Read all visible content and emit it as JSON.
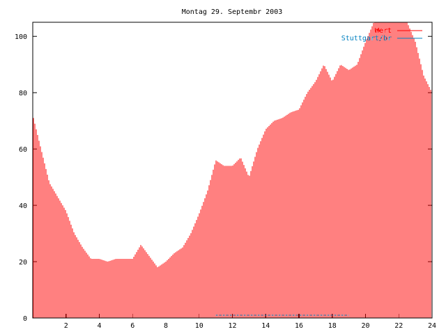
{
  "chart_data": {
    "type": "bar",
    "title": "Montag 29. Septembr 2003",
    "xlabel": "",
    "ylabel": "",
    "xlim": [
      0,
      24
    ],
    "ylim": [
      0,
      105
    ],
    "x_ticks": [
      2,
      4,
      6,
      8,
      10,
      12,
      14,
      16,
      18,
      20,
      22,
      24
    ],
    "y_ticks": [
      0,
      20,
      40,
      60,
      80,
      100
    ],
    "grid": false,
    "legend_position": "top-right",
    "series": [
      {
        "name": "Wert",
        "color": "#ff0000",
        "style": "impulses",
        "points": [
          [
            0.0,
            72
          ],
          [
            0.5,
            60
          ],
          [
            1.0,
            48
          ],
          [
            1.5,
            43
          ],
          [
            2.0,
            38
          ],
          [
            2.5,
            30
          ],
          [
            3.0,
            25
          ],
          [
            3.5,
            21
          ],
          [
            4.0,
            21
          ],
          [
            4.5,
            20
          ],
          [
            5.0,
            21
          ],
          [
            5.5,
            21
          ],
          [
            6.0,
            21
          ],
          [
            6.5,
            26
          ],
          [
            7.0,
            22
          ],
          [
            7.5,
            18
          ],
          [
            8.0,
            20
          ],
          [
            8.5,
            23
          ],
          [
            9.0,
            25
          ],
          [
            9.5,
            30
          ],
          [
            10.0,
            37
          ],
          [
            10.5,
            45
          ],
          [
            11.0,
            56
          ],
          [
            11.5,
            54
          ],
          [
            12.0,
            54
          ],
          [
            12.5,
            57
          ],
          [
            13.0,
            50
          ],
          [
            13.5,
            60
          ],
          [
            14.0,
            67
          ],
          [
            14.5,
            70
          ],
          [
            15.0,
            71
          ],
          [
            15.5,
            73
          ],
          [
            16.0,
            74
          ],
          [
            16.5,
            80
          ],
          [
            17.0,
            84
          ],
          [
            17.5,
            90
          ],
          [
            18.0,
            84
          ],
          [
            18.5,
            90
          ],
          [
            19.0,
            88
          ],
          [
            19.5,
            90
          ],
          [
            20.0,
            98
          ],
          [
            20.5,
            105
          ],
          [
            21.0,
            105
          ],
          [
            21.5,
            105
          ],
          [
            22.0,
            105
          ],
          [
            22.5,
            105
          ],
          [
            23.0,
            98
          ],
          [
            23.5,
            86
          ],
          [
            24.0,
            80
          ]
        ]
      },
      {
        "name": "Stuttgart/br",
        "color": "#0080c0",
        "style": "lines",
        "points": [
          [
            11.0,
            1
          ],
          [
            12.0,
            1
          ],
          [
            13.0,
            1
          ],
          [
            14.0,
            1
          ],
          [
            15.0,
            1
          ],
          [
            16.0,
            1
          ],
          [
            17.0,
            1
          ],
          [
            18.0,
            1
          ],
          [
            19.0,
            1
          ]
        ]
      }
    ]
  }
}
